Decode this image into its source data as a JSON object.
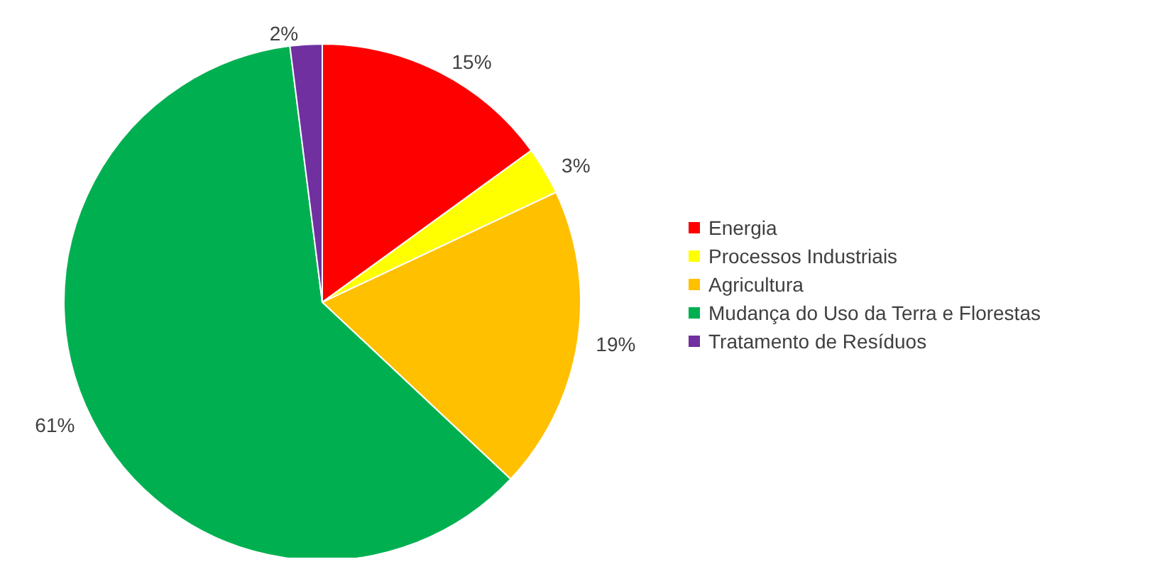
{
  "chart_data": {
    "type": "pie",
    "categories": [
      "Energia",
      "Processos Industriais",
      "Agricultura",
      "Mudança do Uso da Terra e Florestas",
      "Tratamento de Resíduos"
    ],
    "values": [
      15,
      3,
      19,
      61,
      2
    ],
    "colors": [
      "#ff0000",
      "#ffff00",
      "#ffc000",
      "#00b050",
      "#7030a0"
    ],
    "value_labels": [
      "15%",
      "3%",
      "19%",
      "61%",
      "2%"
    ],
    "legend": "right"
  }
}
